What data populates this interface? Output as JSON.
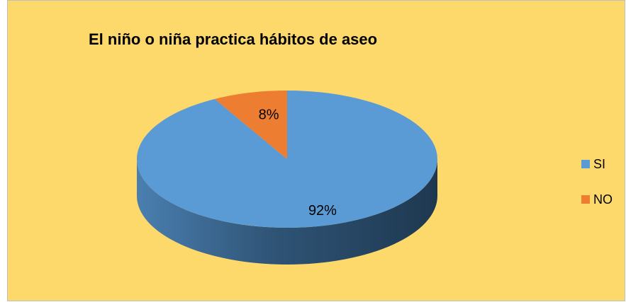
{
  "chart_data": {
    "type": "pie",
    "title": "El niño o niña practica hábitos de aseo",
    "categories": [
      "SI",
      "NO"
    ],
    "values": [
      92,
      8
    ],
    "value_labels": [
      "92%",
      "8%"
    ],
    "colors": [
      "#5b9bd5",
      "#ed7d31"
    ],
    "legend": "right"
  }
}
